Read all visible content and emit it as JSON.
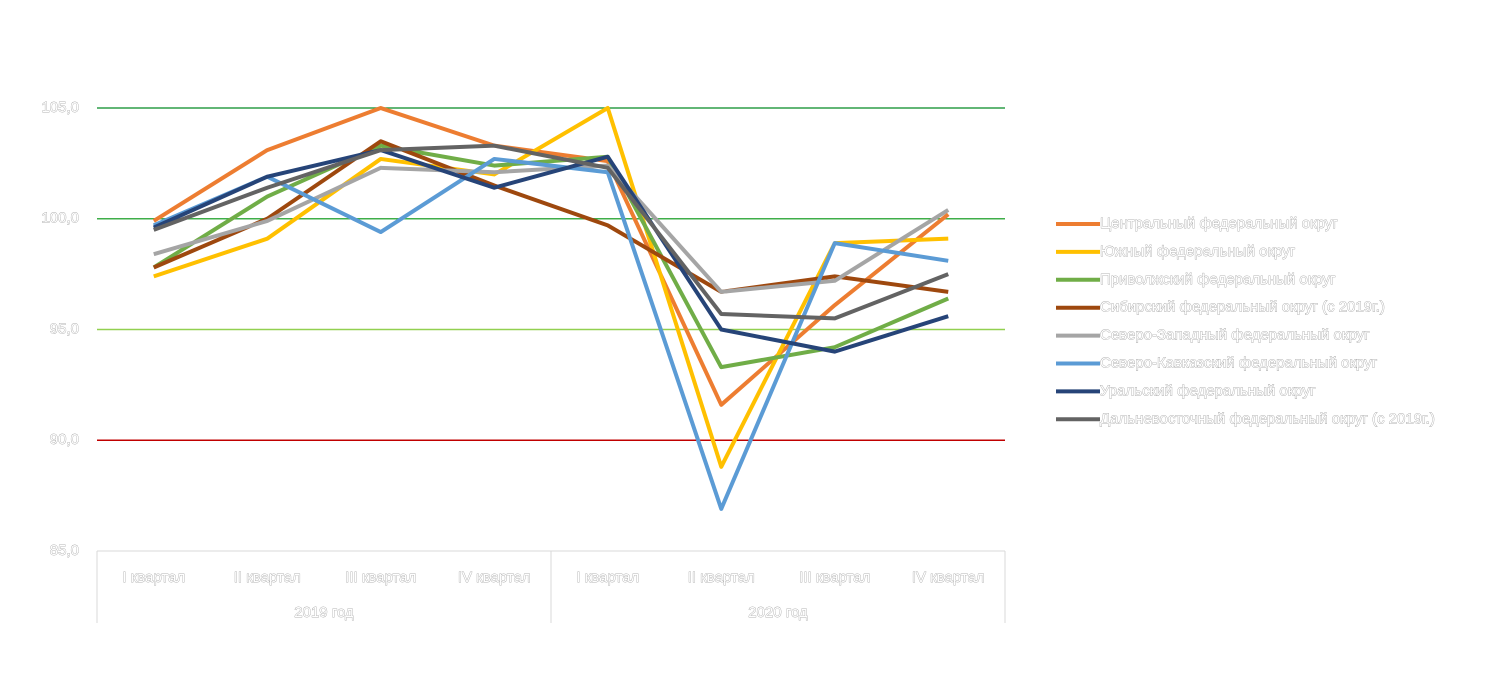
{
  "chart_data": {
    "type": "line",
    "categories": [
      "I квартал",
      "II квартал",
      "III квартал",
      "IV квартал",
      "I квартал",
      "II квартал",
      "III квартал",
      "IV квартал"
    ],
    "category_groups": [
      {
        "label": "2019 год",
        "span": 4
      },
      {
        "label": "2020 год",
        "span": 4
      }
    ],
    "ylim": [
      85,
      105
    ],
    "yticks": [
      {
        "value": 85,
        "label": "85,0"
      },
      {
        "value": 90,
        "label": "90,0"
      },
      {
        "value": 95,
        "label": "95,0"
      },
      {
        "value": 100,
        "label": "100,0"
      },
      {
        "value": 105,
        "label": "105,0"
      }
    ],
    "grid": true,
    "grid_colors": [
      null,
      "#c00000",
      "#92d050",
      "#3fae49",
      "#2e9e48"
    ],
    "legend": "right",
    "series": [
      {
        "name": "Центральный федеральный округ",
        "color": "#ed7d31",
        "values": [
          99.9,
          103.1,
          105.0,
          103.3,
          102.6,
          91.6,
          96.1,
          100.2
        ]
      },
      {
        "name": "Южный федеральный округ",
        "color": "#ffc000",
        "values": [
          97.4,
          99.1,
          102.7,
          102.0,
          105.0,
          88.8,
          98.9,
          99.1
        ]
      },
      {
        "name": "Приволжский федеральный округ",
        "color": "#70ad47",
        "values": [
          97.8,
          101.0,
          103.3,
          102.4,
          102.8,
          93.3,
          94.2,
          96.4
        ]
      },
      {
        "name": "Сибирский федеральный округ (с 2019г.)",
        "color": "#9e480e",
        "values": [
          97.8,
          100.0,
          103.5,
          101.5,
          99.7,
          96.7,
          97.4,
          96.7
        ]
      },
      {
        "name": "Северо-Западный федеральный округ",
        "color": "#a5a5a5",
        "values": [
          98.4,
          99.9,
          102.3,
          102.1,
          102.4,
          96.7,
          97.2,
          100.4
        ]
      },
      {
        "name": "Северо-Кавказский федеральный округ",
        "color": "#5b9bd5",
        "values": [
          99.7,
          101.9,
          99.4,
          102.7,
          102.1,
          86.9,
          98.9,
          98.1
        ]
      },
      {
        "name": "Уральский федеральный округ",
        "color": "#264478",
        "values": [
          99.6,
          101.9,
          103.1,
          101.4,
          102.8,
          95.0,
          94.0,
          95.6
        ]
      },
      {
        "name": "Дальневосточный федеральный округ (с 2019г.)",
        "color": "#636363",
        "values": [
          99.5,
          101.4,
          103.1,
          103.3,
          102.3,
          95.7,
          95.5,
          97.5
        ]
      }
    ]
  }
}
